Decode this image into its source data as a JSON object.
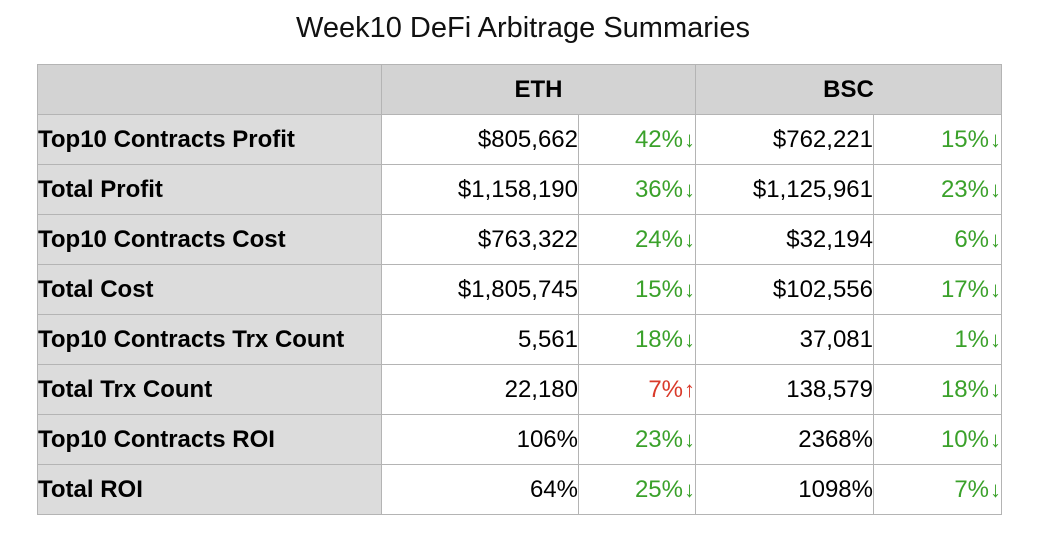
{
  "title": "Week10 DeFi Arbitrage Summaries",
  "colors": {
    "down": "#3aa12a",
    "up": "#d93a2a",
    "header_bg": "#d3d3d3",
    "label_bg": "#dcdcdc"
  },
  "table": {
    "headers": [
      "",
      "ETH",
      "BSC"
    ],
    "rows": [
      {
        "label": "Top10 Contracts Profit",
        "eth": "$805,662",
        "eth_chg": "42%",
        "eth_dir": "down",
        "bsc": "$762,221",
        "bsc_chg": "15%",
        "bsc_dir": "down"
      },
      {
        "label": "Total Profit",
        "eth": "$1,158,190",
        "eth_chg": "36%",
        "eth_dir": "down",
        "bsc": "$1,125,961",
        "bsc_chg": "23%",
        "bsc_dir": "down"
      },
      {
        "label": "Top10 Contracts Cost",
        "eth": "$763,322",
        "eth_chg": "24%",
        "eth_dir": "down",
        "bsc": "$32,194",
        "bsc_chg": "6%",
        "bsc_dir": "down"
      },
      {
        "label": "Total Cost",
        "eth": "$1,805,745",
        "eth_chg": "15%",
        "eth_dir": "down",
        "bsc": "$102,556",
        "bsc_chg": "17%",
        "bsc_dir": "down"
      },
      {
        "label": "Top10 Contracts Trx Count",
        "eth": "5,561",
        "eth_chg": "18%",
        "eth_dir": "down",
        "bsc": "37,081",
        "bsc_chg": "1%",
        "bsc_dir": "down"
      },
      {
        "label": "Total Trx Count",
        "eth": "22,180",
        "eth_chg": "7%",
        "eth_dir": "up",
        "bsc": "138,579",
        "bsc_chg": "18%",
        "bsc_dir": "down"
      },
      {
        "label": "Top10 Contracts ROI",
        "eth": "106%",
        "eth_chg": "23%",
        "eth_dir": "down",
        "bsc": "2368%",
        "bsc_chg": "10%",
        "bsc_dir": "down"
      },
      {
        "label": "Total ROI",
        "eth": "64%",
        "eth_chg": "25%",
        "eth_dir": "down",
        "bsc": "1098%",
        "bsc_chg": "7%",
        "bsc_dir": "down"
      }
    ]
  }
}
